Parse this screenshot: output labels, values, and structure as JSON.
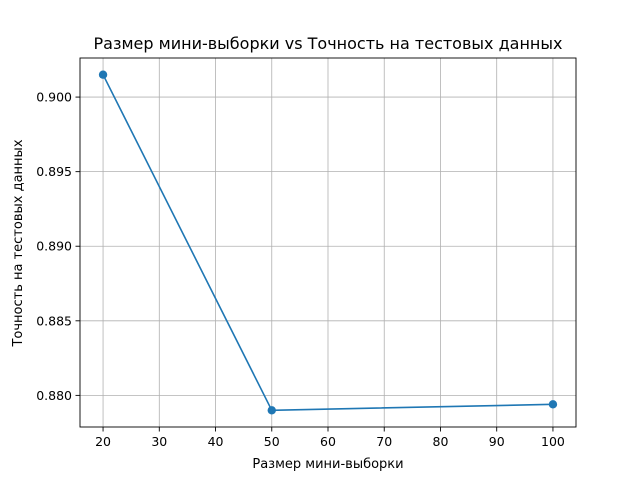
{
  "chart_data": {
    "type": "line",
    "title": "Размер мини-выборки vs Точность на тестовых данных",
    "xlabel": "Размер мини-выборки",
    "ylabel": "Точность на тестовых данных",
    "x": [
      20,
      50,
      100
    ],
    "series": [
      {
        "values": [
          0.9015,
          0.879,
          0.8794
        ],
        "color": "#1f77b4",
        "marker": "circle"
      }
    ],
    "xlim": [
      15.9,
      104.1
    ],
    "ylim": [
      0.87788,
      0.90262
    ],
    "xticks": [
      20,
      30,
      40,
      50,
      60,
      70,
      80,
      90,
      100
    ],
    "xtick_labels": [
      "20",
      "30",
      "40",
      "50",
      "60",
      "70",
      "80",
      "90",
      "100"
    ],
    "yticks": [
      0.88,
      0.885,
      0.89,
      0.895,
      0.9
    ],
    "ytick_labels": [
      "0.880",
      "0.885",
      "0.890",
      "0.895",
      "0.900"
    ],
    "grid": true
  }
}
